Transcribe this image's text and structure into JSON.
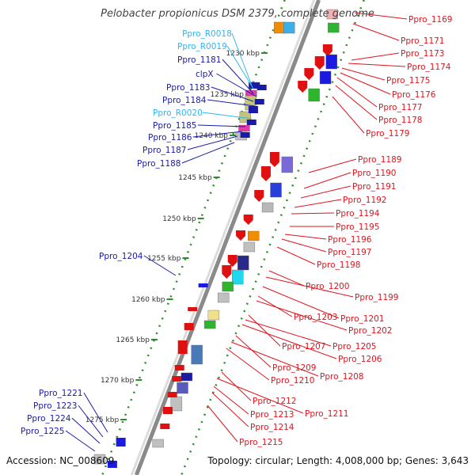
{
  "title": "Pelobacter propionicus DSM 2379, complete genome",
  "accession": "Accession: NC_008609",
  "topology_info": "Topology: circular; Length: 4,008,000 bp; Genes: 3,643",
  "colors": {
    "plus_strand_label": "#1a1aa8",
    "rna_label": "#33b5f0",
    "minus_strand_label": "#e0141e",
    "backbone": "#8a8a8a",
    "scale_dots": "#2e8b2e"
  },
  "kbp_ticks": [
    "1230 kbp",
    "1235 kbp",
    "1240 kbp",
    "1245 kbp",
    "1250 kbp",
    "1255 kbp",
    "1260 kbp",
    "1265 kbp",
    "1270 kbp",
    "1275 kbp"
  ],
  "left_labels": [
    "Ppro_R0018",
    "Ppro_R0019",
    "Ppro_1181",
    "clpX",
    "Ppro_1183",
    "Ppro_1184",
    "Ppro_R0020",
    "Ppro_1185",
    "Ppro_1186",
    "Ppro_1187",
    "Ppro_1188",
    "Ppro_1204",
    "Ppro_1221",
    "Ppro_1223",
    "Ppro_1224",
    "Ppro_1225"
  ],
  "right_labels": [
    "Ppro_1169",
    "Ppro_1171",
    "Ppro_1173",
    "Ppro_1174",
    "Ppro_1175",
    "Ppro_1176",
    "Ppro_1177",
    "Ppro_1178",
    "Ppro_1179",
    "Ppro_1189",
    "Ppro_1190",
    "Ppro_1191",
    "Ppro_1192",
    "Ppro_1194",
    "Ppro_1195",
    "Ppro_1196",
    "Ppro_1197",
    "Ppro_1198",
    "Ppro_1200",
    "Ppro_1199",
    "Ppro_1201",
    "Ppro_1203",
    "Ppro_1202",
    "Ppro_1207",
    "Ppro_1205",
    "Ppro_1206",
    "Ppro_1209",
    "Ppro_1208",
    "Ppro_1210",
    "Ppro_1212",
    "Ppro_1211",
    "Ppro_1213",
    "Ppro_1214",
    "Ppro_1215"
  ]
}
